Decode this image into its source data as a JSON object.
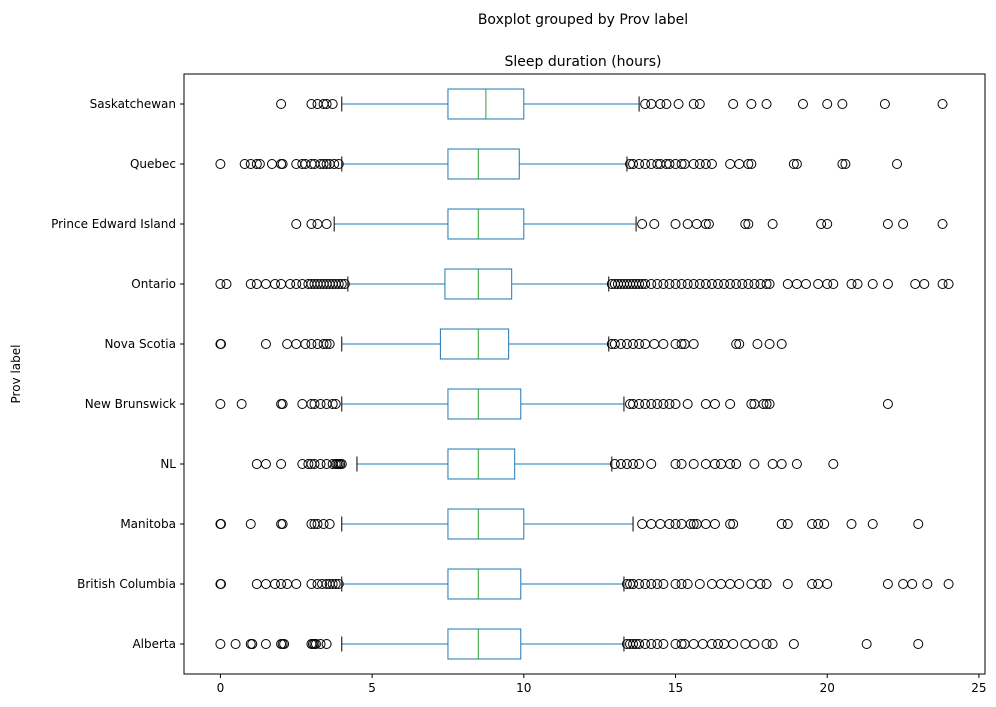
{
  "suptitle": "Boxplot grouped by Prov label",
  "chart_data": {
    "type": "boxplot",
    "orientation": "horizontal",
    "title": "Sleep duration (hours)",
    "xlabel": "",
    "ylabel": "Prov label",
    "xlim": [
      -1.2,
      25.2
    ],
    "xticks": [
      0,
      5,
      10,
      15,
      20,
      25
    ],
    "grid": false,
    "colors": {
      "box": "#1f77b4",
      "median": "#2ca02c",
      "flier": "#000000"
    },
    "categories": [
      "Alberta",
      "British Columbia",
      "Manitoba",
      "NL",
      "New Brunswick",
      "Nova Scotia",
      "Ontario",
      "Prince Edward Island",
      "Quebec",
      "Saskatchewan"
    ],
    "boxes": [
      {
        "label": "Alberta",
        "whislo": 4.0,
        "q1": 7.5,
        "med": 8.5,
        "q3": 9.9,
        "whishi": 13.3,
        "fliers": [
          0,
          0.5,
          1.0,
          1.05,
          1.5,
          2.0,
          2.05,
          2.1,
          3.0,
          3.05,
          3.1,
          3.15,
          3.3,
          3.5,
          13.4,
          13.5,
          13.6,
          13.7,
          13.8,
          14.0,
          14.2,
          14.4,
          14.6,
          15.0,
          15.2,
          15.3,
          15.6,
          15.9,
          16.2,
          16.4,
          16.6,
          16.9,
          17.3,
          17.6,
          18.0,
          18.2,
          18.9,
          21.3,
          23.0
        ]
      },
      {
        "label": "British Columbia",
        "whislo": 4.0,
        "q1": 7.5,
        "med": 8.5,
        "q3": 9.9,
        "whishi": 13.3,
        "fliers": [
          0,
          0.02,
          1.2,
          1.5,
          1.8,
          2.0,
          2.2,
          2.5,
          3.0,
          3.2,
          3.35,
          3.5,
          3.6,
          3.7,
          3.8,
          3.9,
          13.4,
          13.5,
          13.6,
          13.8,
          14.0,
          14.2,
          14.4,
          14.6,
          15.0,
          15.2,
          15.4,
          15.8,
          16.2,
          16.5,
          16.8,
          17.1,
          17.5,
          17.8,
          18.0,
          18.7,
          19.5,
          19.7,
          20.0,
          22.0,
          22.5,
          22.8,
          23.3,
          24.0
        ]
      },
      {
        "label": "Manitoba",
        "whislo": 4.0,
        "q1": 7.5,
        "med": 8.5,
        "q3": 10.0,
        "whishi": 13.6,
        "fliers": [
          0,
          0.02,
          1.0,
          2.0,
          2.05,
          3.0,
          3.1,
          3.2,
          3.4,
          3.6,
          13.9,
          14.2,
          14.5,
          14.8,
          15.0,
          15.2,
          15.5,
          15.6,
          15.7,
          16.0,
          16.3,
          16.8,
          16.9,
          18.5,
          18.7,
          19.5,
          19.7,
          19.9,
          20.8,
          21.5,
          23.0
        ]
      },
      {
        "label": "NL",
        "whislo": 4.5,
        "q1": 7.5,
        "med": 8.5,
        "q3": 9.7,
        "whishi": 12.9,
        "fliers": [
          1.2,
          1.5,
          2.0,
          2.7,
          2.9,
          3.0,
          3.1,
          3.3,
          3.5,
          3.7,
          3.8,
          3.85,
          3.9,
          3.95,
          4.0,
          13.0,
          13.2,
          13.4,
          13.6,
          13.8,
          14.2,
          15.0,
          15.2,
          15.6,
          16.0,
          16.3,
          16.5,
          16.8,
          17.0,
          17.6,
          18.2,
          18.5,
          19.0,
          20.2
        ]
      },
      {
        "label": "New Brunswick",
        "whislo": 4.0,
        "q1": 7.5,
        "med": 8.5,
        "q3": 9.9,
        "whishi": 13.3,
        "fliers": [
          0,
          0.7,
          2.0,
          2.05,
          2.7,
          3.0,
          3.1,
          3.3,
          3.5,
          3.7,
          3.8,
          13.5,
          13.6,
          13.8,
          14.0,
          14.2,
          14.4,
          14.6,
          14.8,
          15.0,
          15.4,
          16.0,
          16.3,
          16.8,
          17.5,
          17.6,
          17.9,
          18.0,
          18.1,
          22.0
        ]
      },
      {
        "label": "Nova Scotia",
        "whislo": 4.0,
        "q1": 7.25,
        "med": 8.5,
        "q3": 9.5,
        "whishi": 12.8,
        "fliers": [
          0,
          0.02,
          1.5,
          2.2,
          2.5,
          2.8,
          3.0,
          3.2,
          3.4,
          3.5,
          3.6,
          12.9,
          13.0,
          13.2,
          13.4,
          13.6,
          13.8,
          14.0,
          14.3,
          14.6,
          15.0,
          15.2,
          15.3,
          15.6,
          17.0,
          17.1,
          17.7,
          18.1,
          18.5
        ]
      },
      {
        "label": "Ontario",
        "whislo": 4.2,
        "q1": 7.4,
        "med": 8.5,
        "q3": 9.6,
        "whishi": 12.8,
        "fliers": [
          0,
          0.2,
          1.0,
          1.2,
          1.5,
          1.8,
          2.0,
          2.3,
          2.5,
          2.7,
          2.9,
          3.0,
          3.1,
          3.2,
          3.3,
          3.4,
          3.5,
          3.6,
          3.7,
          3.8,
          3.9,
          4.0,
          4.1,
          12.9,
          13.0,
          13.1,
          13.2,
          13.3,
          13.4,
          13.5,
          13.6,
          13.7,
          13.8,
          13.9,
          14.0,
          14.2,
          14.4,
          14.6,
          14.8,
          15.0,
          15.2,
          15.4,
          15.6,
          15.8,
          16.0,
          16.2,
          16.4,
          16.6,
          16.8,
          17.0,
          17.2,
          17.4,
          17.6,
          17.8,
          18.0,
          18.1,
          18.7,
          19.0,
          19.3,
          19.7,
          20.0,
          20.2,
          20.8,
          21.0,
          21.5,
          22.0,
          22.9,
          23.2,
          23.8,
          24.0
        ]
      },
      {
        "label": "Prince Edward Island",
        "whislo": 3.75,
        "q1": 7.5,
        "med": 8.5,
        "q3": 10.0,
        "whishi": 13.7,
        "fliers": [
          2.5,
          3.0,
          3.2,
          3.5,
          13.9,
          14.3,
          15.0,
          15.4,
          15.7,
          16.0,
          16.1,
          17.3,
          17.4,
          18.2,
          19.8,
          20.0,
          22.0,
          22.5,
          23.8
        ]
      },
      {
        "label": "Quebec",
        "whislo": 4.0,
        "q1": 7.5,
        "med": 8.5,
        "q3": 9.85,
        "whishi": 13.4,
        "fliers": [
          0,
          0.8,
          1.0,
          1.2,
          1.3,
          1.7,
          2.0,
          2.05,
          2.5,
          2.7,
          2.8,
          3.0,
          3.1,
          3.3,
          3.4,
          3.5,
          3.6,
          3.75,
          3.9,
          13.5,
          13.6,
          13.8,
          14.0,
          14.2,
          14.4,
          14.5,
          14.7,
          14.8,
          15.0,
          15.2,
          15.3,
          15.6,
          15.8,
          16.0,
          16.2,
          16.8,
          17.1,
          17.4,
          17.5,
          18.9,
          19.0,
          20.5,
          20.6,
          22.3
        ]
      },
      {
        "label": "Saskatchewan",
        "whislo": 4.0,
        "q1": 7.5,
        "med": 8.75,
        "q3": 10.0,
        "whishi": 13.8,
        "fliers": [
          2.0,
          3.0,
          3.2,
          3.4,
          3.5,
          3.7,
          14.0,
          14.2,
          14.5,
          14.7,
          15.1,
          15.6,
          15.8,
          16.9,
          17.5,
          18.0,
          19.2,
          20.0,
          20.5,
          21.9,
          23.8
        ]
      }
    ]
  }
}
